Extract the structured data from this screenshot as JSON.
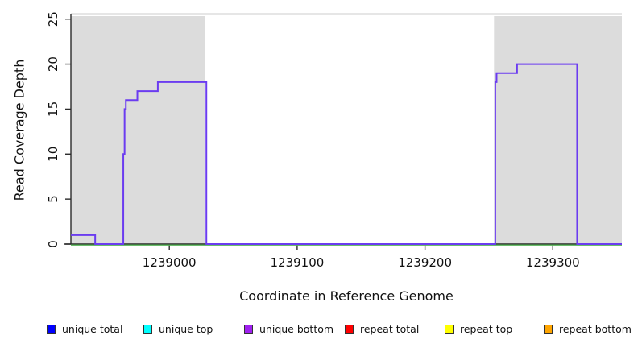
{
  "chart_data": {
    "type": "line",
    "subtype": "step-coverage",
    "title": "",
    "xlabel": "Coordinate in Reference Genome",
    "ylabel": "Read Coverage Depth",
    "xlim": [
      1238923,
      1239354
    ],
    "ylim": [
      0,
      25.6
    ],
    "x_ticks": [
      "1239000",
      "1239100",
      "1239200",
      "1239300"
    ],
    "x_tick_values": [
      1239000,
      1239100,
      1239200,
      1239300
    ],
    "y_ticks": [
      "0",
      "5",
      "10",
      "15",
      "20",
      "25"
    ],
    "y_tick_values": [
      0,
      5,
      10,
      15,
      20,
      25
    ],
    "grid": false,
    "shaded_regions": [
      {
        "start": 1238923,
        "end": 1239028
      },
      {
        "start": 1239254,
        "end": 1239354
      }
    ],
    "shaded_color": "#dcdcdc",
    "shaded_top_line_color": "#999999",
    "axis_color": "#2a2a2a",
    "series": [
      {
        "name": "unique bottom coverage",
        "color": "#6b3cf0",
        "steps": [
          [
            1238923,
            1238942,
            1
          ],
          [
            1238942,
            1238964,
            0
          ],
          [
            1238964,
            1238965,
            10
          ],
          [
            1238965,
            1238966,
            15
          ],
          [
            1238966,
            1238975,
            16
          ],
          [
            1238975,
            1238991,
            17
          ],
          [
            1238991,
            1239029,
            18
          ],
          [
            1239029,
            1239255,
            0
          ],
          [
            1239255,
            1239256,
            18
          ],
          [
            1239256,
            1239272,
            19
          ],
          [
            1239272,
            1239319,
            20
          ],
          [
            1239319,
            1239354,
            0
          ]
        ]
      },
      {
        "name": "zero coverage baseline",
        "color": "#55b555",
        "steps": [
          [
            1238923,
            1239354,
            0
          ]
        ]
      }
    ],
    "legend_position": "bottom",
    "legend": [
      {
        "label": "unique total",
        "color": "#0000ff"
      },
      {
        "label": "unique top",
        "color": "#00ffff"
      },
      {
        "label": "unique bottom",
        "color": "#a020f0"
      },
      {
        "label": "repeat total",
        "color": "#ff0000"
      },
      {
        "label": "repeat top",
        "color": "#ffff00"
      },
      {
        "label": "repeat bottom",
        "color": "#ffa500"
      }
    ]
  }
}
